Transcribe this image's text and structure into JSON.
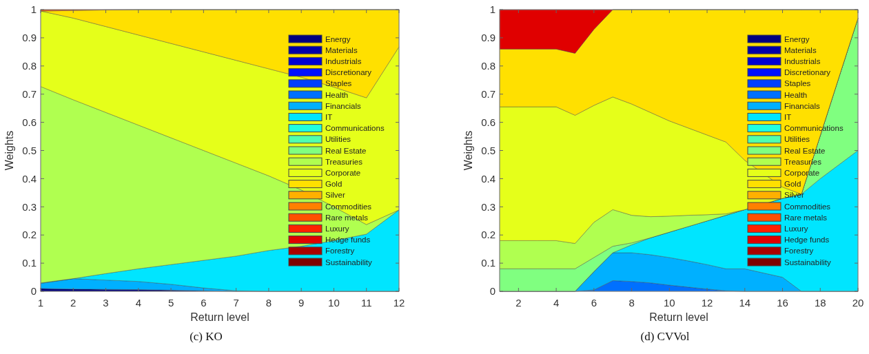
{
  "chart_data": [
    {
      "type": "area",
      "stacked": true,
      "title": "(c) KO",
      "xlabel": "Return level",
      "ylabel": "Weights",
      "x": [
        1,
        2,
        3,
        4,
        5,
        6,
        7,
        8,
        9,
        10,
        11,
        12
      ],
      "xlim": [
        1,
        12
      ],
      "xticks": [
        1,
        2,
        3,
        4,
        5,
        6,
        7,
        8,
        9,
        10,
        11,
        12
      ],
      "ylim": [
        0,
        1
      ],
      "yticks": [
        0,
        0.1,
        0.2,
        0.3,
        0.4,
        0.5,
        0.6,
        0.7,
        0.8,
        0.9,
        1
      ],
      "legend": "right",
      "grid": false,
      "series": [
        {
          "name": "Energy",
          "color": "#00007f",
          "values": [
            0.01,
            0.008,
            0.007,
            0.006,
            0.004,
            0.002,
            0,
            0,
            0,
            0,
            0,
            0
          ]
        },
        {
          "name": "Materials",
          "color": "#0000aa",
          "values": [
            null,
            null,
            null,
            null,
            null,
            null,
            null,
            null,
            null,
            null,
            null,
            null
          ]
        },
        {
          "name": "Industrials",
          "color": "#0000d5",
          "values": [
            null,
            null,
            null,
            null,
            null,
            null,
            null,
            null,
            null,
            null,
            null,
            null
          ]
        },
        {
          "name": "Discretionary",
          "color": "#0010ff",
          "values": [
            null,
            null,
            null,
            null,
            null,
            null,
            null,
            null,
            null,
            null,
            null,
            null
          ]
        },
        {
          "name": "Staples",
          "color": "#0040ff",
          "values": [
            null,
            null,
            null,
            null,
            null,
            null,
            null,
            null,
            null,
            null,
            null,
            null
          ]
        },
        {
          "name": "Health",
          "color": "#0070ff",
          "values": [
            null,
            null,
            null,
            null,
            null,
            null,
            null,
            null,
            null,
            null,
            null,
            null
          ]
        },
        {
          "name": "Financials",
          "color": "#00b0ff",
          "values": [
            0.018,
            0.037,
            0.033,
            0.029,
            0.021,
            0.01,
            0.002,
            0,
            0,
            0,
            0,
            0
          ]
        },
        {
          "name": "IT",
          "color": "#00e5ff",
          "values": [
            0.002,
            0,
            0.023,
            0.045,
            0.07,
            0.098,
            0.123,
            0.145,
            0.16,
            0.18,
            0.203,
            0.289
          ]
        },
        {
          "name": "Communications",
          "color": "#20ffdf",
          "values": [
            null,
            null,
            null,
            null,
            null,
            null,
            null,
            null,
            null,
            null,
            null,
            null
          ]
        },
        {
          "name": "Utilities",
          "color": "#50ffaf",
          "values": [
            null,
            null,
            null,
            null,
            null,
            null,
            null,
            null,
            null,
            null,
            null,
            null
          ]
        },
        {
          "name": "Real Estate",
          "color": "#80ff80",
          "values": [
            null,
            null,
            null,
            null,
            null,
            null,
            null,
            null,
            null,
            null,
            null,
            null
          ]
        },
        {
          "name": "Treasuries",
          "color": "#b0ff50",
          "values": [
            0.697,
            0.635,
            0.572,
            0.51,
            0.45,
            0.39,
            0.33,
            0.265,
            0.2,
            0.12,
            0.034,
            0
          ]
        },
        {
          "name": "Corporate",
          "color": "#e5ff1a",
          "values": [
            0.268,
            0.29,
            0.305,
            0.32,
            0.335,
            0.35,
            0.365,
            0.38,
            0.4,
            0.425,
            0.45,
            0.579
          ]
        },
        {
          "name": "Gold",
          "color": "#ffe000",
          "values": [
            0,
            0.027,
            0.059,
            0.09,
            0.12,
            0.15,
            0.18,
            0.21,
            0.24,
            0.275,
            0.313,
            0.132
          ]
        },
        {
          "name": "Silver",
          "color": "#ffb000",
          "values": [
            null,
            null,
            null,
            null,
            null,
            null,
            null,
            null,
            null,
            null,
            null,
            null
          ]
        },
        {
          "name": "Commodities",
          "color": "#ff8000",
          "values": [
            null,
            null,
            null,
            null,
            null,
            null,
            null,
            null,
            null,
            null,
            null,
            null
          ]
        },
        {
          "name": "Rare metals",
          "color": "#ff5000",
          "values": [
            0.005,
            0.003,
            0.001,
            0,
            0,
            0,
            0,
            0,
            0,
            0,
            0,
            0
          ]
        },
        {
          "name": "Luxury",
          "color": "#ff2000",
          "values": [
            null,
            null,
            null,
            null,
            null,
            null,
            null,
            null,
            null,
            null,
            null,
            null
          ]
        },
        {
          "name": "Hedge funds",
          "color": "#e00000",
          "values": [
            null,
            null,
            null,
            null,
            null,
            null,
            null,
            null,
            null,
            null,
            null,
            null
          ]
        },
        {
          "name": "Forestry",
          "color": "#aa0000",
          "values": [
            null,
            null,
            null,
            null,
            null,
            null,
            null,
            null,
            null,
            null,
            null,
            null
          ]
        },
        {
          "name": "Sustainability",
          "color": "#7f0000",
          "values": [
            null,
            null,
            null,
            null,
            null,
            null,
            null,
            null,
            null,
            null,
            null,
            null
          ]
        }
      ]
    },
    {
      "type": "area",
      "stacked": true,
      "title": "(d) CVVol",
      "xlabel": "Return level",
      "ylabel": "Weights",
      "x": [
        1,
        2,
        3,
        4,
        5,
        6,
        7,
        8,
        9,
        10,
        11,
        12,
        13,
        14,
        16,
        17,
        18,
        19,
        20
      ],
      "xlim": [
        1,
        20
      ],
      "xticks": [
        2,
        4,
        6,
        8,
        10,
        12,
        14,
        16,
        18,
        20
      ],
      "ylim": [
        0,
        1
      ],
      "yticks": [
        0,
        0.1,
        0.2,
        0.3,
        0.4,
        0.5,
        0.6,
        0.7,
        0.8,
        0.9,
        1
      ],
      "legend": "right",
      "grid": false,
      "series": [
        {
          "name": "Energy",
          "color": "#00007f",
          "values": [
            null,
            null,
            null,
            null,
            null,
            null,
            null,
            null,
            null,
            null,
            null,
            null,
            null,
            null,
            null,
            null,
            null,
            null,
            null
          ]
        },
        {
          "name": "Materials",
          "color": "#0000aa",
          "values": [
            null,
            null,
            null,
            null,
            null,
            null,
            null,
            null,
            null,
            null,
            null,
            null,
            null,
            null,
            null,
            null,
            null,
            null,
            null
          ]
        },
        {
          "name": "Industrials",
          "color": "#0000d5",
          "values": [
            null,
            null,
            null,
            null,
            null,
            null,
            null,
            null,
            null,
            null,
            null,
            null,
            null,
            null,
            null,
            null,
            null,
            null,
            null
          ]
        },
        {
          "name": "Discretionary",
          "color": "#0010ff",
          "values": [
            null,
            null,
            null,
            null,
            null,
            null,
            null,
            null,
            null,
            null,
            null,
            null,
            null,
            null,
            null,
            null,
            null,
            null,
            null
          ]
        },
        {
          "name": "Staples",
          "color": "#0040ff",
          "values": [
            null,
            null,
            null,
            null,
            null,
            null,
            null,
            null,
            null,
            null,
            null,
            null,
            null,
            null,
            null,
            null,
            null,
            null,
            null
          ]
        },
        {
          "name": "Health",
          "color": "#0070ff",
          "values": [
            0,
            0,
            0,
            0,
            0,
            0.005,
            0.038,
            0.035,
            0.03,
            0.022,
            0.015,
            0.008,
            0.002,
            0,
            0,
            0,
            0,
            0,
            0
          ]
        },
        {
          "name": "Financials",
          "color": "#00b0ff",
          "values": [
            0,
            0,
            0,
            0,
            0,
            0.065,
            0.099,
            0.102,
            0.1,
            0.098,
            0.093,
            0.087,
            0.078,
            0.08,
            0.05,
            0,
            0,
            0,
            0
          ]
        },
        {
          "name": "IT",
          "color": "#00e5ff",
          "values": [
            0,
            0,
            0,
            0,
            0,
            0,
            0,
            0.028,
            0.06,
            0.09,
            0.122,
            0.155,
            0.19,
            0.21,
            0.28,
            0.345,
            0.4,
            0.45,
            0.5
          ]
        },
        {
          "name": "Communications",
          "color": "#20ffdf",
          "values": [
            null,
            null,
            null,
            null,
            null,
            null,
            null,
            null,
            null,
            null,
            null,
            null,
            null,
            null,
            null,
            null,
            null,
            null,
            null
          ]
        },
        {
          "name": "Utilities",
          "color": "#50ffaf",
          "values": [
            null,
            null,
            null,
            null,
            null,
            null,
            null,
            null,
            null,
            null,
            null,
            null,
            null,
            null,
            null,
            null,
            null,
            null,
            null
          ]
        },
        {
          "name": "Real Estate",
          "color": "#80ff80",
          "values": [
            0.08,
            0.08,
            0.08,
            0.08,
            0.08,
            0.05,
            0.023,
            0.007,
            0,
            0,
            0,
            0,
            0,
            0,
            0,
            0,
            0.153,
            0.312,
            0.47
          ]
        },
        {
          "name": "Treasuries",
          "color": "#b0ff50",
          "values": [
            0.1,
            0.1,
            0.1,
            0.1,
            0.09,
            0.125,
            0.13,
            0.098,
            0.075,
            0.057,
            0.04,
            0.022,
            0.005,
            0,
            0,
            0,
            0,
            0,
            0
          ]
        },
        {
          "name": "Corporate",
          "color": "#e5ff1a",
          "values": [
            0.475,
            0.475,
            0.475,
            0.475,
            0.455,
            0.415,
            0.4,
            0.395,
            0.37,
            0.338,
            0.31,
            0.283,
            0.255,
            0.175,
            0.04,
            0,
            0,
            0,
            0
          ]
        },
        {
          "name": "Gold",
          "color": "#ffe000",
          "values": [
            0.205,
            0.205,
            0.205,
            0.205,
            0.22,
            0.27,
            0.31,
            0.335,
            0.365,
            0.395,
            0.42,
            0.445,
            0.47,
            0.535,
            0.63,
            0.655,
            0.447,
            0.238,
            0.03
          ]
        },
        {
          "name": "Silver",
          "color": "#ffb000",
          "values": [
            null,
            null,
            null,
            null,
            null,
            null,
            null,
            null,
            null,
            null,
            null,
            null,
            null,
            null,
            null,
            null,
            null,
            null,
            null
          ]
        },
        {
          "name": "Commodities",
          "color": "#ff8000",
          "values": [
            null,
            null,
            null,
            null,
            null,
            null,
            null,
            null,
            null,
            null,
            null,
            null,
            null,
            null,
            null,
            null,
            null,
            null,
            null
          ]
        },
        {
          "name": "Rare metals",
          "color": "#ff5000",
          "values": [
            null,
            null,
            null,
            null,
            null,
            null,
            null,
            null,
            null,
            null,
            null,
            null,
            null,
            null,
            null,
            null,
            null,
            null,
            null
          ]
        },
        {
          "name": "Luxury",
          "color": "#ff2000",
          "values": [
            null,
            null,
            null,
            null,
            null,
            null,
            null,
            null,
            null,
            null,
            null,
            null,
            null,
            null,
            null,
            null,
            null,
            null,
            null
          ]
        },
        {
          "name": "Hedge funds",
          "color": "#e00000",
          "values": [
            0.14,
            0.14,
            0.14,
            0.14,
            0.155,
            0.07,
            0,
            0,
            0,
            0,
            0,
            0,
            0,
            0,
            0,
            0,
            0,
            0,
            0
          ]
        },
        {
          "name": "Forestry",
          "color": "#aa0000",
          "values": [
            null,
            null,
            null,
            null,
            null,
            null,
            null,
            null,
            null,
            null,
            null,
            null,
            null,
            null,
            null,
            null,
            null,
            null,
            null
          ]
        },
        {
          "name": "Sustainability",
          "color": "#7f0000",
          "values": [
            null,
            null,
            null,
            null,
            null,
            null,
            null,
            null,
            null,
            null,
            null,
            null,
            null,
            null,
            null,
            null,
            null,
            null,
            null
          ]
        }
      ]
    }
  ]
}
